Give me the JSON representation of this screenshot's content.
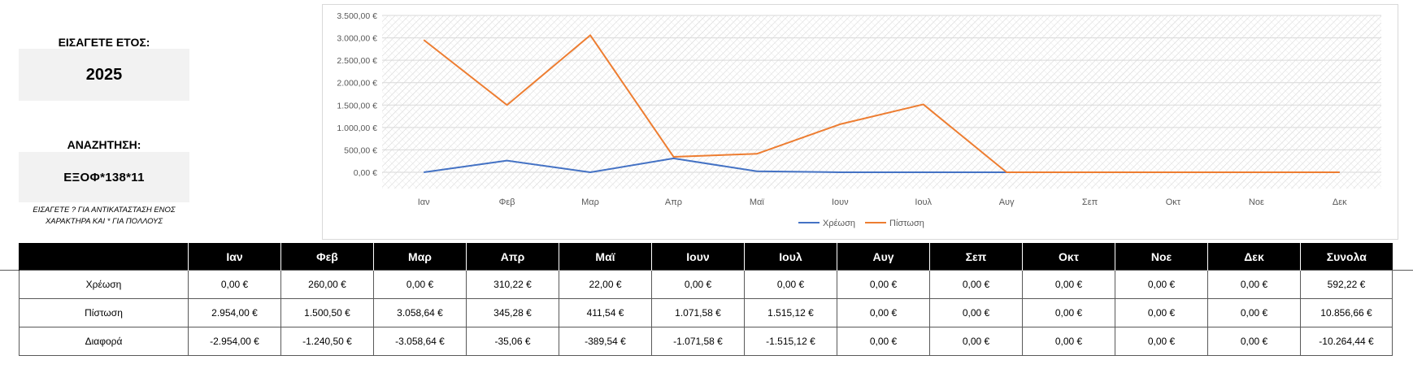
{
  "year_input": {
    "label": "ΕΙΣΑΓΕΤΕ ΕΤΟΣ:",
    "value": "2025"
  },
  "search_input": {
    "label": "ΑΝΑΖΗΤΗΣΗ:",
    "value": "ΕΞΟΦ*138*11",
    "hint_line1": "ΕΙΣΑΓΕΤΕ ? ΓΙΑ ΑΝΤΙΚΑΤΑΣΤΑΣΗ ΕΝΟΣ",
    "hint_line2": "ΧΑΡΑΚΤΗΡΑ ΚΑΙ * ΓΙΑ ΠΟΛΛΟΥΣ"
  },
  "chart_data": {
    "type": "line",
    "categories": [
      "Ιαν",
      "Φεβ",
      "Μαρ",
      "Απρ",
      "Μαϊ",
      "Ιουν",
      "Ιουλ",
      "Αυγ",
      "Σεπ",
      "Οκτ",
      "Νοε",
      "Δεκ"
    ],
    "yticks": [
      "0,00 €",
      "500,00 €",
      "1.000,00 €",
      "1.500,00 €",
      "2.000,00 €",
      "2.500,00 €",
      "3.000,00 €",
      "3.500,00 €"
    ],
    "ylim": [
      0,
      3500
    ],
    "grid": true,
    "legend_position": "bottom",
    "series": [
      {
        "name": "Χρέωση",
        "color": "#4472c4",
        "values": [
          0,
          260,
          0,
          310.22,
          22,
          0,
          0,
          0,
          0,
          0,
          0,
          0
        ]
      },
      {
        "name": "Πίστωση",
        "color": "#ed7d31",
        "values": [
          2954,
          1500.5,
          3058.64,
          345.28,
          411.54,
          1071.58,
          1515.12,
          0,
          0,
          0,
          0,
          0
        ]
      }
    ]
  },
  "table": {
    "headers": [
      "",
      "Ιαν",
      "Φεβ",
      "Μαρ",
      "Απρ",
      "Μαϊ",
      "Ιουν",
      "Ιουλ",
      "Αυγ",
      "Σεπ",
      "Οκτ",
      "Νοε",
      "Δεκ",
      "Συνολα"
    ],
    "rows": [
      {
        "label": "Χρέωση",
        "cells": [
          "0,00 €",
          "260,00 €",
          "0,00 €",
          "310,22 €",
          "22,00 €",
          "0,00 €",
          "0,00 €",
          "0,00 €",
          "0,00 €",
          "0,00 €",
          "0,00 €",
          "0,00 €",
          "592,22 €"
        ]
      },
      {
        "label": "Πίστωση",
        "cells": [
          "2.954,00 €",
          "1.500,50 €",
          "3.058,64 €",
          "345,28 €",
          "411,54 €",
          "1.071,58 €",
          "1.515,12 €",
          "0,00 €",
          "0,00 €",
          "0,00 €",
          "0,00 €",
          "0,00 €",
          "10.856,66 €"
        ]
      },
      {
        "label": "Διαφορά",
        "cells": [
          "-2.954,00 €",
          "-1.240,50 €",
          "-3.058,64 €",
          "-35,06 €",
          "-389,54 €",
          "-1.071,58 €",
          "-1.515,12 €",
          "0,00 €",
          "0,00 €",
          "0,00 €",
          "0,00 €",
          "0,00 €",
          "-10.264,44 €"
        ]
      }
    ]
  }
}
